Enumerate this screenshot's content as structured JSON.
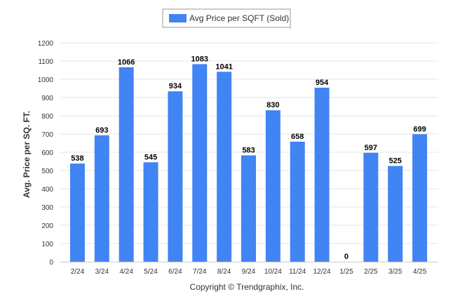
{
  "chart_data": {
    "type": "bar",
    "categories": [
      "2/24",
      "3/24",
      "4/24",
      "5/24",
      "6/24",
      "7/24",
      "8/24",
      "9/24",
      "10/24",
      "11/24",
      "12/24",
      "1/25",
      "2/25",
      "3/25",
      "4/25"
    ],
    "series": [
      {
        "name": "Avg Price per SQFT (Sold)",
        "values": [
          538,
          693,
          1066,
          545,
          934,
          1083,
          1041,
          583,
          830,
          658,
          954,
          0,
          597,
          525,
          699
        ],
        "color": "#4184f3"
      }
    ],
    "ylabel": "Avg. Price per SQ. FT.",
    "xlabel": "",
    "ylim": [
      0,
      1200
    ],
    "yticks": [
      0,
      100,
      200,
      300,
      400,
      500,
      600,
      700,
      800,
      900,
      1000,
      1100,
      1200
    ],
    "grid": true,
    "legend": "top-center",
    "data_labels": true
  },
  "footer": {
    "copyright": "Copyright © Trendgraphix, Inc."
  },
  "colors": {
    "bar": "#4184f3",
    "grid": "#e6e6e6"
  }
}
